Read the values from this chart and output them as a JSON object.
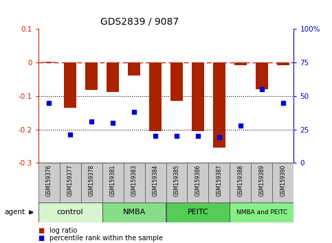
{
  "title": "GDS2839 / 9087",
  "samples": [
    "GSM159376",
    "GSM159377",
    "GSM159378",
    "GSM159381",
    "GSM159383",
    "GSM159384",
    "GSM159385",
    "GSM159386",
    "GSM159387",
    "GSM159388",
    "GSM159389",
    "GSM159390"
  ],
  "log_ratios": [
    0.002,
    -0.135,
    -0.082,
    -0.088,
    -0.038,
    -0.205,
    -0.115,
    -0.205,
    -0.255,
    -0.008,
    -0.08,
    -0.008
  ],
  "percentile_ranks": [
    45,
    21,
    31,
    30,
    38,
    20,
    20,
    20,
    19,
    28,
    55,
    45
  ],
  "groups": [
    {
      "label": "control",
      "start": 0,
      "end": 3,
      "color": "#d8f5d0"
    },
    {
      "label": "NMBA",
      "start": 3,
      "end": 6,
      "color": "#88dd88"
    },
    {
      "label": "PEITC",
      "start": 6,
      "end": 9,
      "color": "#55cc55"
    },
    {
      "label": "NMBA and PEITC",
      "start": 9,
      "end": 12,
      "color": "#88ee88"
    }
  ],
  "ylim_left": [
    -0.3,
    0.1
  ],
  "ylim_right": [
    0,
    100
  ],
  "bar_color": "#aa2200",
  "dot_color": "#0000cc",
  "hline_color": "#cc2200",
  "dotline_color": "#000000",
  "sample_box_color": "#cccccc",
  "background_color": "#ffffff"
}
